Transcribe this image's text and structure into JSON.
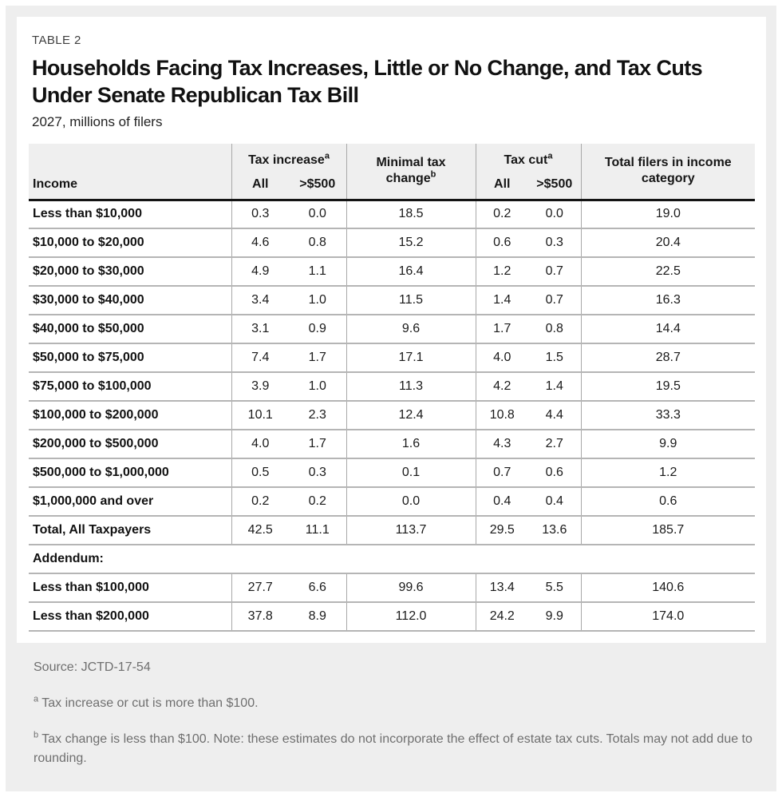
{
  "header": {
    "kicker": "TABLE 2",
    "title": "Households Facing Tax Increases, Little or No Change, and Tax Cuts Under Senate Republican Tax Bill",
    "subtitle": "2027, millions of filers"
  },
  "table_header": {
    "income": "Income",
    "tax_increase_label": "Tax increase",
    "tax_increase_sup": "a",
    "tax_increase_sub_all": "All",
    "tax_increase_sub_500": ">$500",
    "minimal_label": "Minimal tax change",
    "minimal_sup": "b",
    "tax_cut_label": "Tax cut",
    "tax_cut_sup": "a",
    "tax_cut_sub_all": "All",
    "tax_cut_sub_500": ">$500",
    "total_label": "Total filers in income category"
  },
  "chart_data": {
    "type": "table",
    "title": "Households Facing Tax Increases, Little or No Change, and Tax Cuts Under Senate Republican Tax Bill",
    "subtitle": "2027, millions of filers",
    "units": "millions of filers",
    "columns": [
      "Income",
      "Tax increase (a) All",
      "Tax increase (a) >$500",
      "Minimal tax change (b)",
      "Tax cut (a) All",
      "Tax cut (a) >$500",
      "Total filers in income category"
    ],
    "rows": [
      {
        "cells": [
          "Less than $10,000",
          "0.3",
          "0.0",
          "18.5",
          "0.2",
          "0.0",
          "19.0"
        ]
      },
      {
        "cells": [
          "$10,000 to $20,000",
          "4.6",
          "0.8",
          "15.2",
          "0.6",
          "0.3",
          "20.4"
        ]
      },
      {
        "cells": [
          "$20,000 to $30,000",
          "4.9",
          "1.1",
          "16.4",
          "1.2",
          "0.7",
          "22.5"
        ]
      },
      {
        "cells": [
          "$30,000 to $40,000",
          "3.4",
          "1.0",
          "11.5",
          "1.4",
          "0.7",
          "16.3"
        ]
      },
      {
        "cells": [
          "$40,000 to $50,000",
          "3.1",
          "0.9",
          "9.6",
          "1.7",
          "0.8",
          "14.4"
        ]
      },
      {
        "cells": [
          "$50,000 to $75,000",
          "7.4",
          "1.7",
          "17.1",
          "4.0",
          "1.5",
          "28.7"
        ]
      },
      {
        "cells": [
          "$75,000 to $100,000",
          "3.9",
          "1.0",
          "11.3",
          "4.2",
          "1.4",
          "19.5"
        ]
      },
      {
        "cells": [
          "$100,000 to $200,000",
          "10.1",
          "2.3",
          "12.4",
          "10.8",
          "4.4",
          "33.3"
        ]
      },
      {
        "cells": [
          "$200,000 to $500,000",
          "4.0",
          "1.7",
          "1.6",
          "4.3",
          "2.7",
          "9.9"
        ]
      },
      {
        "cells": [
          "$500,000 to $1,000,000",
          "0.5",
          "0.3",
          "0.1",
          "0.7",
          "0.6",
          "1.2"
        ]
      },
      {
        "cells": [
          "$1,000,000 and over",
          "0.2",
          "0.2",
          "0.0",
          "0.4",
          "0.4",
          "0.6"
        ]
      },
      {
        "cells": [
          "Total, All Taxpayers",
          "42.5",
          "11.1",
          "113.7",
          "29.5",
          "13.6",
          "185.7"
        ]
      },
      {
        "section": "Addendum:"
      },
      {
        "cells": [
          "Less than $100,000",
          "27.7",
          "6.6",
          "99.6",
          "13.4",
          "5.5",
          "140.6"
        ]
      },
      {
        "cells": [
          "Less than $200,000",
          "37.8",
          "8.9",
          "112.0",
          "24.2",
          "9.9",
          "174.0"
        ]
      }
    ]
  },
  "footer": {
    "source": "Source: JCTD-17-54",
    "note_a_marker": "a",
    "note_a_text": " Tax increase or cut is more than $100.",
    "note_b_marker": "b",
    "note_b_text": " Tax change is less than $100. Note: these estimates do not incorporate the effect of estate tax cuts. Totals may not add due to rounding."
  },
  "colors": {
    "page_bg": "#ffffff",
    "panel_bg": "#eeeeee",
    "card_bg": "#ffffff",
    "header_bg": "#efefef",
    "row_border": "#b5b5b5",
    "column_border": "#a8a8a8",
    "header_rule": "#141414",
    "text": "#1a1a1a",
    "muted_text": "#6f6f6f"
  }
}
